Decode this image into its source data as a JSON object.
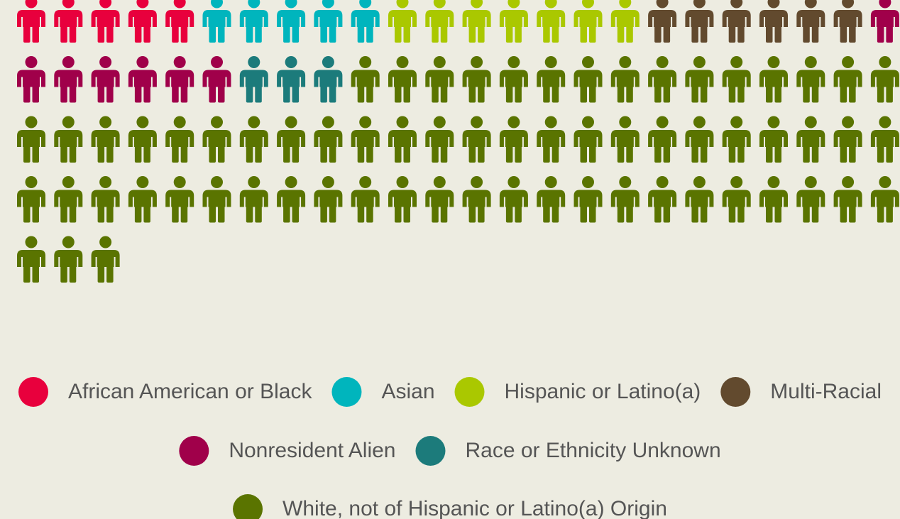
{
  "chart_data": {
    "type": "pictograph",
    "series": [
      {
        "name": "African American or Black",
        "color": "#e8003d",
        "values": [
          5
        ]
      },
      {
        "name": "Asian",
        "color": "#00b5bd",
        "values": [
          5
        ]
      },
      {
        "name": "Hispanic or Latino(a)",
        "color": "#aac800",
        "values": [
          7
        ]
      },
      {
        "name": "Multi-Racial",
        "color": "#624a2e",
        "values": [
          6
        ]
      },
      {
        "name": "Nonresident Alien",
        "color": "#a0004a",
        "values": [
          7
        ]
      },
      {
        "name": "Race or Ethnicity Unknown",
        "color": "#1c7b7b",
        "values": [
          3
        ]
      },
      {
        "name": "White, not of Hispanic or Latino(a) Origin",
        "color": "#5a7400",
        "values": [
          66
        ]
      }
    ]
  }
}
